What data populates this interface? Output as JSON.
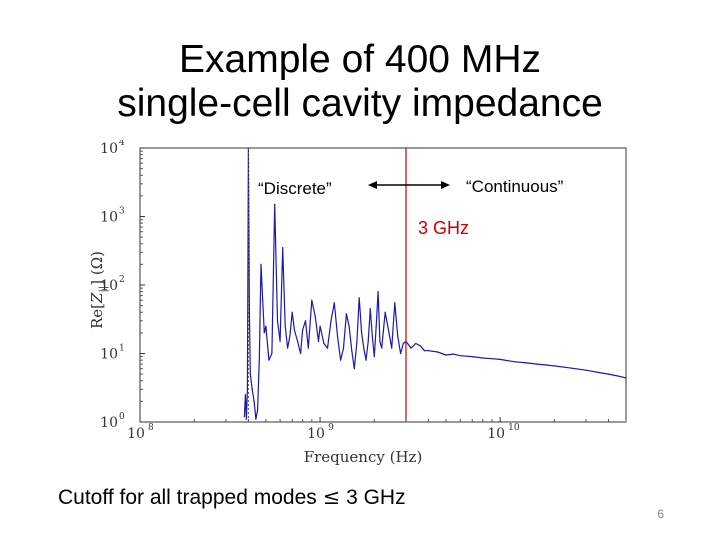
{
  "title_line1": "Example of 400 MHz",
  "title_line2": "single-cell cavity impedance",
  "chart_data": {
    "type": "line",
    "xscale": "log",
    "yscale": "log",
    "xlim": [
      100000000,
      50000000000
    ],
    "ylim": [
      1,
      10000
    ],
    "xlabel": "Frequency (Hz)",
    "ylabel": "Re[Z||] (Ω)",
    "ylabel_parts": {
      "pre": "Re[",
      "var": "Z",
      "sub": "||",
      "post": "] (Ω)"
    },
    "xticks": [
      {
        "value": 100000000,
        "base": "10",
        "exp": "8"
      },
      {
        "value": 1000000000,
        "base": "10",
        "exp": "9"
      },
      {
        "value": 10000000000,
        "base": "10",
        "exp": "10"
      }
    ],
    "yticks": [
      {
        "value": 1,
        "base": "10",
        "exp": "0"
      },
      {
        "value": 10,
        "base": "10",
        "exp": "1"
      },
      {
        "value": 100,
        "base": "10",
        "exp": "2"
      },
      {
        "value": 1000,
        "base": "10",
        "exp": "3"
      },
      {
        "value": 10000,
        "base": "10",
        "exp": "4"
      }
    ],
    "series": [
      {
        "name": "Re[Z||]",
        "color": "#1a1aa6",
        "x": [
          380000000.0,
          385000000.0,
          390000000.0,
          395000000.0,
          400000000.0,
          405000000.0,
          410000000.0,
          420000000.0,
          430000000.0,
          440000000.0,
          450000000.0,
          460000000.0,
          470000000.0,
          480000000.0,
          490000000.0,
          500000000.0,
          520000000.0,
          540000000.0,
          560000000.0,
          580000000.0,
          600000000.0,
          620000000.0,
          640000000.0,
          660000000.0,
          680000000.0,
          700000000.0,
          720000000.0,
          750000000.0,
          780000000.0,
          800000000.0,
          830000000.0,
          860000000.0,
          900000000.0,
          940000000.0,
          980000000.0,
          1000000000.0,
          1050000000.0,
          1100000000.0,
          1150000000.0,
          1200000000.0,
          1250000000.0,
          1300000000.0,
          1350000000.0,
          1400000000.0,
          1450000000.0,
          1500000000.0,
          1550000000.0,
          1600000000.0,
          1650000000.0,
          1700000000.0,
          1750000000.0,
          1800000000.0,
          1850000000.0,
          1900000000.0,
          1950000000.0,
          2000000000.0,
          2050000000.0,
          2100000000.0,
          2150000000.0,
          2200000000.0,
          2300000000.0,
          2400000000.0,
          2500000000.0,
          2600000000.0,
          2700000000.0,
          2800000000.0,
          2900000000.0,
          3000000000.0,
          3200000000.0,
          3400000000.0,
          3600000000.0,
          3800000000.0,
          4000000000.0,
          4500000000.0,
          5000000000.0,
          5500000000.0,
          6000000000.0,
          7000000000.0,
          8000000000.0,
          9000000000.0,
          10000000000.0,
          12000000000.0,
          14000000000.0,
          16000000000.0,
          18000000000.0,
          20000000000.0,
          25000000000.0,
          30000000000.0,
          35000000000.0,
          40000000000.0,
          45000000000.0,
          50000000000.0
        ],
        "y": [
          1.2,
          2.5,
          1.1,
          3.0,
          12000,
          40,
          5,
          3,
          2,
          1.1,
          1.5,
          8,
          200,
          60,
          20,
          25,
          8,
          10,
          1500,
          30,
          15,
          350,
          25,
          12,
          18,
          40,
          22,
          15,
          10,
          22,
          30,
          12,
          60,
          35,
          15,
          25,
          14,
          12,
          30,
          55,
          18,
          8,
          12,
          38,
          25,
          11,
          6,
          14,
          65,
          20,
          12,
          8,
          15,
          45,
          18,
          9,
          25,
          80,
          15,
          12,
          40,
          22,
          12,
          55,
          18,
          10,
          14,
          15,
          12,
          14,
          13,
          11,
          11,
          10.5,
          9.5,
          9.8,
          9.3,
          9,
          8.6,
          8.4,
          8.2,
          7.6,
          7.3,
          7,
          6.8,
          6.6,
          6.1,
          5.7,
          5.3,
          5.0,
          4.7,
          4.4
        ]
      }
    ],
    "annotations": [
      {
        "text": "“Discrete”",
        "color": "#000000"
      },
      {
        "text": "“Continuous”",
        "color": "#000000"
      },
      {
        "text": "3 GHz",
        "color": "#cc0000",
        "x": 3000000000
      }
    ],
    "reference_lines": [
      {
        "type": "vertical",
        "x": 3000000000,
        "color": "#cc0000"
      },
      {
        "type": "vertical-dashed",
        "x": 400000000,
        "color": "#555555"
      }
    ]
  },
  "bottom_note": {
    "text": "Cutoff for all trapped modes",
    "symbol": "≤",
    "value": "3 GHz"
  },
  "slide_number": "6"
}
